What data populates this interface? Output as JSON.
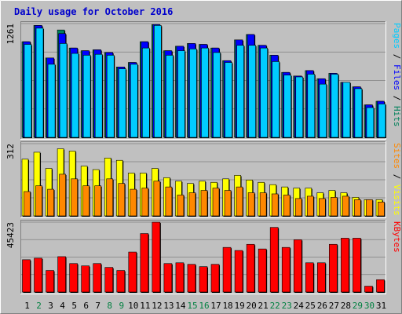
{
  "title": "Daily usage for October 2016",
  "colors": {
    "pages": "#00ccff",
    "files": "#0000ff",
    "hits": "#00805a",
    "visits": "#ffff00",
    "sites": "#ff8800",
    "kbytes": "#ff0000",
    "weekday_label": "#008040",
    "day_label": "#000000"
  },
  "chart_data": [
    {
      "type": "bar",
      "panel": "hits_files_pages",
      "categories": [
        "1",
        "2",
        "3",
        "4",
        "5",
        "6",
        "7",
        "8",
        "9",
        "10",
        "11",
        "12",
        "13",
        "14",
        "15",
        "16",
        "17",
        "18",
        "19",
        "20",
        "21",
        "22",
        "23",
        "24",
        "25",
        "26",
        "27",
        "28",
        "29",
        "30",
        "31"
      ],
      "ymax": 1261,
      "ymax_label": "1261",
      "axis_label_parts": [
        {
          "text": "Pages",
          "color_key": "pages"
        },
        {
          "text": " / ",
          "color_key": "day_label"
        },
        {
          "text": "Files",
          "color_key": "files"
        },
        {
          "text": " / ",
          "color_key": "day_label"
        },
        {
          "text": "Hits",
          "color_key": "hits"
        }
      ],
      "series": [
        {
          "name": "Hits",
          "values": [
            1060,
            1240,
            880,
            1190,
            990,
            960,
            970,
            940,
            780,
            830,
            1060,
            1250,
            960,
            1010,
            1040,
            1030,
            990,
            850,
            1080,
            1140,
            1020,
            910,
            720,
            680,
            740,
            650,
            710,
            610,
            560,
            360,
            400
          ]
        },
        {
          "name": "Files",
          "values": [
            1060,
            1240,
            880,
            1150,
            990,
            960,
            970,
            940,
            780,
            830,
            1060,
            1250,
            960,
            1010,
            1040,
            1030,
            990,
            850,
            1080,
            1140,
            1020,
            910,
            720,
            680,
            740,
            650,
            710,
            610,
            560,
            360,
            400
          ]
        },
        {
          "name": "Pages",
          "values": [
            1030,
            1210,
            810,
            1040,
            930,
            910,
            920,
            910,
            760,
            810,
            990,
            1240,
            910,
            960,
            980,
            990,
            940,
            830,
            1020,
            1020,
            990,
            840,
            690,
            670,
            700,
            590,
            700,
            610,
            540,
            330,
            370
          ]
        }
      ]
    },
    {
      "type": "bar",
      "panel": "visits_sites",
      "categories": [
        "1",
        "2",
        "3",
        "4",
        "5",
        "6",
        "7",
        "8",
        "9",
        "10",
        "11",
        "12",
        "13",
        "14",
        "15",
        "16",
        "17",
        "18",
        "19",
        "20",
        "21",
        "22",
        "23",
        "24",
        "25",
        "26",
        "27",
        "28",
        "29",
        "30",
        "31"
      ],
      "ymax": 312,
      "ymax_label": "312",
      "axis_label_parts": [
        {
          "text": "Sites",
          "color_key": "sites"
        },
        {
          "text": " / ",
          "color_key": "day_label"
        },
        {
          "text": "Visits",
          "color_key": "visits"
        }
      ],
      "series": [
        {
          "name": "Visits",
          "values": [
            245,
            275,
            205,
            290,
            280,
            215,
            200,
            250,
            240,
            185,
            185,
            205,
            165,
            150,
            140,
            150,
            145,
            160,
            175,
            155,
            145,
            135,
            125,
            120,
            120,
            100,
            110,
            100,
            80,
            70,
            70
          ]
        },
        {
          "name": "Sites",
          "values": [
            105,
            130,
            115,
            180,
            160,
            130,
            130,
            160,
            140,
            115,
            120,
            150,
            125,
            90,
            100,
            110,
            120,
            110,
            125,
            100,
            100,
            95,
            90,
            75,
            85,
            75,
            80,
            85,
            70,
            70,
            60
          ]
        }
      ]
    },
    {
      "type": "bar",
      "panel": "kbytes",
      "categories": [
        "1",
        "2",
        "3",
        "4",
        "5",
        "6",
        "7",
        "8",
        "9",
        "10",
        "11",
        "12",
        "13",
        "14",
        "15",
        "16",
        "17",
        "18",
        "19",
        "20",
        "21",
        "22",
        "23",
        "24",
        "25",
        "26",
        "27",
        "28",
        "29",
        "30",
        "31"
      ],
      "ymax": 45423,
      "ymax_label": "45423",
      "axis_label_parts": [
        {
          "text": "KBytes",
          "color_key": "kbytes"
        }
      ],
      "series": [
        {
          "name": "KBytes",
          "values": [
            21000,
            22000,
            14000,
            23000,
            18500,
            17000,
            18500,
            16000,
            14000,
            26000,
            38000,
            45400,
            18500,
            19000,
            18000,
            16500,
            18000,
            29000,
            27000,
            31000,
            28000,
            42000,
            29000,
            34000,
            19000,
            19000,
            31000,
            35000,
            35000,
            3800,
            8000
          ]
        }
      ]
    }
  ],
  "days": [
    {
      "label": "1",
      "weekend": false
    },
    {
      "label": "2",
      "weekend": true
    },
    {
      "label": "3",
      "weekend": false
    },
    {
      "label": "4",
      "weekend": false
    },
    {
      "label": "5",
      "weekend": false
    },
    {
      "label": "6",
      "weekend": false
    },
    {
      "label": "7",
      "weekend": false
    },
    {
      "label": "8",
      "weekend": true
    },
    {
      "label": "9",
      "weekend": true
    },
    {
      "label": "10",
      "weekend": false
    },
    {
      "label": "11",
      "weekend": false
    },
    {
      "label": "12",
      "weekend": false
    },
    {
      "label": "13",
      "weekend": false
    },
    {
      "label": "14",
      "weekend": false
    },
    {
      "label": "15",
      "weekend": true
    },
    {
      "label": "16",
      "weekend": true
    },
    {
      "label": "17",
      "weekend": false
    },
    {
      "label": "18",
      "weekend": false
    },
    {
      "label": "19",
      "weekend": false
    },
    {
      "label": "20",
      "weekend": false
    },
    {
      "label": "21",
      "weekend": false
    },
    {
      "label": "22",
      "weekend": true
    },
    {
      "label": "23",
      "weekend": true
    },
    {
      "label": "24",
      "weekend": false
    },
    {
      "label": "25",
      "weekend": false
    },
    {
      "label": "26",
      "weekend": false
    },
    {
      "label": "27",
      "weekend": false
    },
    {
      "label": "28",
      "weekend": false
    },
    {
      "label": "29",
      "weekend": true
    },
    {
      "label": "30",
      "weekend": true
    },
    {
      "label": "31",
      "weekend": false
    }
  ]
}
